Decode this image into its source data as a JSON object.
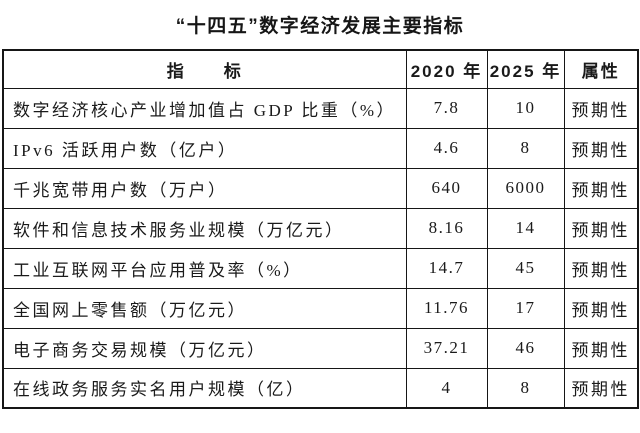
{
  "page": {
    "background_color": "#ffffff",
    "text_color": "#1a1a1a",
    "border_color": "#161616"
  },
  "title": "“十四五”数字经济发展主要指标",
  "table": {
    "headers": {
      "indicator": "指　　标",
      "y2020": "2020 年",
      "y2025": "2025 年",
      "attribute": "属性"
    },
    "rows": [
      {
        "indicator": "数字经济核心产业增加值占 GDP 比重（%）",
        "y2020": "7.8",
        "y2025": "10",
        "attribute": "预期性"
      },
      {
        "indicator": "IPv6 活跃用户数（亿户）",
        "y2020": "4.6",
        "y2025": "8",
        "attribute": "预期性"
      },
      {
        "indicator": "千兆宽带用户数（万户）",
        "y2020": "640",
        "y2025": "6000",
        "attribute": "预期性"
      },
      {
        "indicator": "软件和信息技术服务业规模（万亿元）",
        "y2020": "8.16",
        "y2025": "14",
        "attribute": "预期性"
      },
      {
        "indicator": "工业互联网平台应用普及率（%）",
        "y2020": "14.7",
        "y2025": "45",
        "attribute": "预期性"
      },
      {
        "indicator": "全国网上零售额（万亿元）",
        "y2020": "11.76",
        "y2025": "17",
        "attribute": "预期性"
      },
      {
        "indicator": "电子商务交易规模（万亿元）",
        "y2020": "37.21",
        "y2025": "46",
        "attribute": "预期性"
      },
      {
        "indicator": "在线政务服务实名用户规模（亿）",
        "y2020": "4",
        "y2025": "8",
        "attribute": "预期性"
      }
    ]
  },
  "chart_data": {
    "type": "table",
    "title": "“十四五”数字经济发展主要指标",
    "columns": [
      "指标",
      "2020 年",
      "2025 年",
      "属性"
    ],
    "rows": [
      [
        "数字经济核心产业增加值占 GDP 比重（%）",
        7.8,
        10,
        "预期性"
      ],
      [
        "IPv6 活跃用户数（亿户）",
        4.6,
        8,
        "预期性"
      ],
      [
        "千兆宽带用户数（万户）",
        640,
        6000,
        "预期性"
      ],
      [
        "软件和信息技术服务业规模（万亿元）",
        8.16,
        14,
        "预期性"
      ],
      [
        "工业互联网平台应用普及率（%）",
        14.7,
        45,
        "预期性"
      ],
      [
        "全国网上零售额（万亿元）",
        11.76,
        17,
        "预期性"
      ],
      [
        "电子商务交易规模（万亿元）",
        37.21,
        46,
        "预期性"
      ],
      [
        "在线政务服务实名用户规模（亿）",
        4,
        8,
        "预期性"
      ]
    ]
  }
}
